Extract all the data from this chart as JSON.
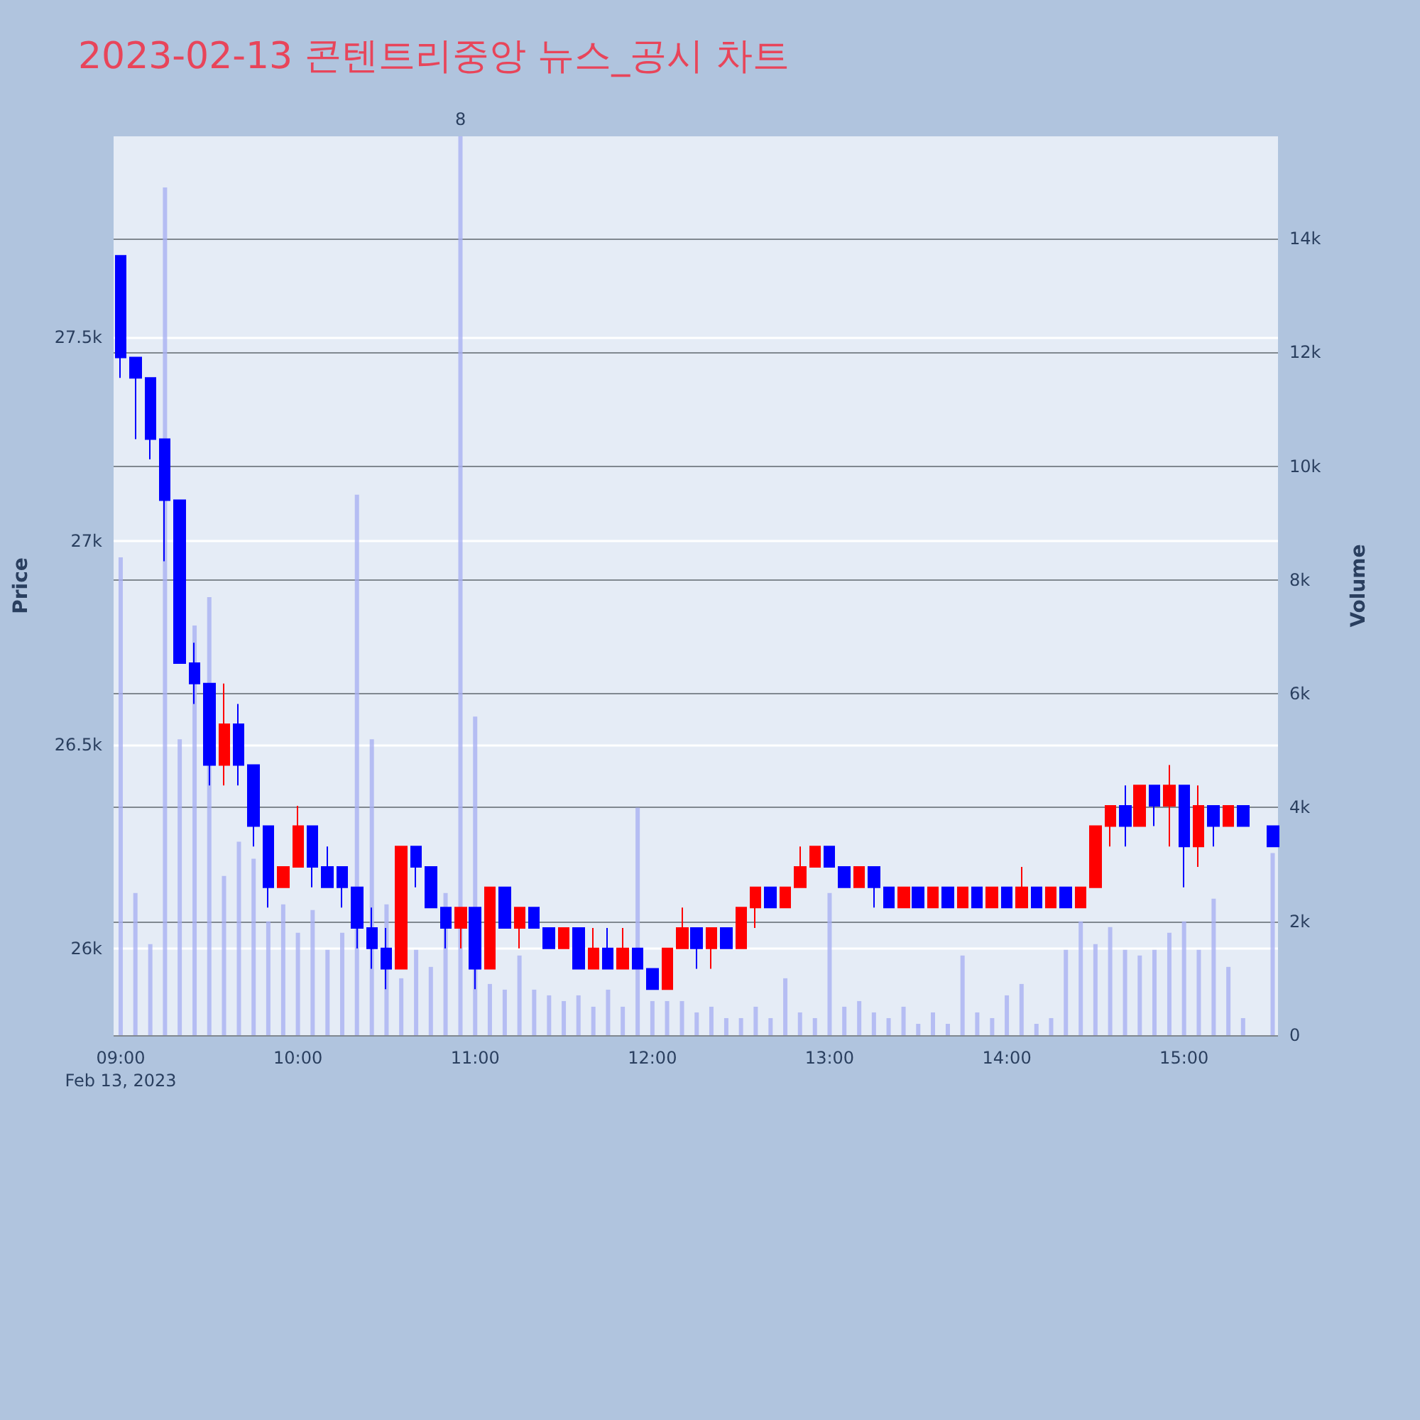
{
  "chart_data": {
    "type": "candlestick",
    "title": "2023-02-13 콘텐트리중앙 뉴스_공시 차트",
    "ylabel": "Price",
    "y2label": "Volume",
    "x": [
      9,
      9.083,
      9.167,
      9.25,
      9.333,
      9.417,
      9.5,
      9.583,
      9.667,
      9.75,
      9.833,
      9.917,
      10,
      10.083,
      10.167,
      10.25,
      10.333,
      10.417,
      10.5,
      10.583,
      10.667,
      10.75,
      10.833,
      10.917,
      11,
      11.083,
      11.167,
      11.25,
      11.333,
      11.417,
      11.5,
      11.583,
      11.667,
      11.75,
      11.833,
      11.917,
      12,
      12.083,
      12.167,
      12.25,
      12.333,
      12.417,
      12.5,
      12.583,
      12.667,
      12.75,
      12.833,
      12.917,
      13,
      13.083,
      13.167,
      13.25,
      13.333,
      13.417,
      13.5,
      13.583,
      13.667,
      13.75,
      13.833,
      13.917,
      14,
      14.083,
      14.167,
      14.25,
      14.333,
      14.417,
      14.5,
      14.583,
      14.667,
      14.75,
      14.833,
      14.917,
      15,
      15.083,
      15.167,
      15.25,
      15.333,
      15.5
    ],
    "series": [
      {
        "ohlc": [
          [
            27700,
            27700,
            27400,
            27450
          ],
          [
            27450,
            27450,
            27250,
            27400
          ],
          [
            27400,
            27400,
            27200,
            27250
          ],
          [
            27250,
            27250,
            26950,
            27100
          ],
          [
            27100,
            27100,
            26700,
            26700
          ],
          [
            26700,
            26750,
            26600,
            26650
          ],
          [
            26650,
            26650,
            26400,
            26450
          ],
          [
            26450,
            26650,
            26400,
            26550
          ],
          [
            26550,
            26600,
            26400,
            26450
          ],
          [
            26450,
            26450,
            26250,
            26300
          ],
          [
            26300,
            26300,
            26100,
            26150
          ],
          [
            26150,
            26200,
            26150,
            26200
          ],
          [
            26200,
            26350,
            26200,
            26300
          ],
          [
            26300,
            26300,
            26150,
            26200
          ],
          [
            26200,
            26250,
            26150,
            26150
          ],
          [
            26200,
            26200,
            26100,
            26150
          ],
          [
            26150,
            26150,
            26000,
            26050
          ],
          [
            26050,
            26100,
            25950,
            26000
          ],
          [
            26000,
            26050,
            25900,
            25950
          ],
          [
            25950,
            26250,
            25950,
            26250
          ],
          [
            26250,
            26250,
            26150,
            26200
          ],
          [
            26200,
            26200,
            26100,
            26100
          ],
          [
            26100,
            26100,
            26000,
            26050
          ],
          [
            26050,
            26100,
            26000,
            26100
          ],
          [
            26100,
            26100,
            25900,
            25950
          ],
          [
            25950,
            26150,
            25950,
            26150
          ],
          [
            26150,
            26150,
            26050,
            26050
          ],
          [
            26050,
            26100,
            26000,
            26100
          ],
          [
            26100,
            26100,
            26050,
            26050
          ],
          [
            26050,
            26050,
            26000,
            26000
          ],
          [
            26000,
            26050,
            26000,
            26050
          ],
          [
            26050,
            26050,
            25950,
            25950
          ],
          [
            25950,
            26050,
            25950,
            26000
          ],
          [
            26000,
            26050,
            25950,
            25950
          ],
          [
            25950,
            26050,
            25950,
            26000
          ],
          [
            26000,
            26000,
            25950,
            25950
          ],
          [
            25950,
            25950,
            25900,
            25900
          ],
          [
            25900,
            26000,
            25900,
            26000
          ],
          [
            26000,
            26100,
            26000,
            26050
          ],
          [
            26050,
            26050,
            25950,
            26000
          ],
          [
            26000,
            26050,
            25950,
            26050
          ],
          [
            26050,
            26050,
            26000,
            26000
          ],
          [
            26000,
            26100,
            26000,
            26100
          ],
          [
            26100,
            26150,
            26050,
            26150
          ],
          [
            26150,
            26150,
            26100,
            26100
          ],
          [
            26100,
            26150,
            26100,
            26150
          ],
          [
            26150,
            26250,
            26150,
            26200
          ],
          [
            26200,
            26250,
            26200,
            26250
          ],
          [
            26250,
            26250,
            26200,
            26200
          ],
          [
            26200,
            26200,
            26150,
            26150
          ],
          [
            26150,
            26200,
            26150,
            26200
          ],
          [
            26200,
            26200,
            26100,
            26150
          ],
          [
            26150,
            26150,
            26100,
            26100
          ],
          [
            26100,
            26150,
            26100,
            26150
          ],
          [
            26150,
            26150,
            26100,
            26100
          ],
          [
            26100,
            26150,
            26100,
            26150
          ],
          [
            26150,
            26150,
            26100,
            26100
          ],
          [
            26100,
            26150,
            26100,
            26150
          ],
          [
            26150,
            26150,
            26100,
            26100
          ],
          [
            26100,
            26150,
            26100,
            26150
          ],
          [
            26150,
            26150,
            26100,
            26100
          ],
          [
            26100,
            26200,
            26100,
            26150
          ],
          [
            26150,
            26150,
            26100,
            26100
          ],
          [
            26100,
            26150,
            26100,
            26150
          ],
          [
            26150,
            26150,
            26100,
            26100
          ],
          [
            26100,
            26150,
            26100,
            26150
          ],
          [
            26150,
            26300,
            26150,
            26300
          ],
          [
            26300,
            26350,
            26250,
            26350
          ],
          [
            26350,
            26400,
            26250,
            26300
          ],
          [
            26300,
            26400,
            26300,
            26400
          ],
          [
            26400,
            26400,
            26300,
            26350
          ],
          [
            26350,
            26450,
            26250,
            26400
          ],
          [
            26400,
            26400,
            26150,
            26250
          ],
          [
            26250,
            26400,
            26200,
            26350
          ],
          [
            26350,
            26350,
            26250,
            26300
          ],
          [
            26300,
            26350,
            26300,
            26350
          ],
          [
            26350,
            26350,
            26300,
            26300
          ],
          [
            26300,
            26300,
            26250,
            26250
          ]
        ],
        "colors": [
          "#0000ff",
          "#0000ff",
          "#0000ff",
          "#0000ff",
          "#0000ff",
          "#0000ff",
          "#0000ff",
          "#ff0000",
          "#0000ff",
          "#0000ff",
          "#0000ff",
          "#ff0000",
          "#ff0000",
          "#0000ff",
          "#0000ff",
          "#0000ff",
          "#0000ff",
          "#0000ff",
          "#0000ff",
          "#ff0000",
          "#0000ff",
          "#0000ff",
          "#0000ff",
          "#ff0000",
          "#0000ff",
          "#ff0000",
          "#0000ff",
          "#ff0000",
          "#0000ff",
          "#0000ff",
          "#ff0000",
          "#0000ff",
          "#ff0000",
          "#0000ff",
          "#ff0000",
          "#0000ff",
          "#0000ff",
          "#ff0000",
          "#ff0000",
          "#0000ff",
          "#ff0000",
          "#0000ff",
          "#ff0000",
          "#ff0000",
          "#0000ff",
          "#ff0000",
          "#ff0000",
          "#ff0000",
          "#0000ff",
          "#0000ff",
          "#ff0000",
          "#0000ff",
          "#0000ff",
          "#ff0000",
          "#0000ff",
          "#ff0000",
          "#0000ff",
          "#ff0000",
          "#0000ff",
          "#ff0000",
          "#0000ff",
          "#ff0000",
          "#0000ff",
          "#ff0000",
          "#0000ff",
          "#ff0000",
          "#ff0000",
          "#ff0000",
          "#0000ff",
          "#ff0000",
          "#0000ff",
          "#ff0000",
          "#0000ff",
          "#ff0000",
          "#0000ff",
          "#ff0000",
          "#0000ff",
          "#0000ff"
        ]
      },
      {
        "type": "bar",
        "axis": "y2",
        "color": "#a9b2f2",
        "values": [
          8400,
          2500,
          1600,
          14900,
          5200,
          7200,
          7700,
          2800,
          3400,
          3100,
          2000,
          2300,
          1800,
          2200,
          1500,
          1800,
          9500,
          5200,
          2300,
          1000,
          1500,
          1200,
          2500,
          15800,
          5600,
          900,
          800,
          1400,
          800,
          700,
          600,
          700,
          500,
          800,
          500,
          4000,
          600,
          600,
          600,
          400,
          500,
          300,
          300,
          500,
          300,
          1000,
          400,
          300,
          2500,
          500,
          600,
          400,
          300,
          500,
          200,
          400,
          200,
          1400,
          400,
          300,
          700,
          900,
          200,
          300,
          1500,
          2000,
          1600,
          1900,
          1500,
          1400,
          1500,
          1800,
          2000,
          1500,
          2400,
          1200,
          300,
          3200
        ]
      }
    ],
    "xlim": [
      8.96,
      15.53
    ],
    "xticks": [
      {
        "value": 9,
        "label": "09:00\nFeb 13, 2023"
      },
      {
        "value": 10,
        "label": "10:00"
      },
      {
        "value": 11,
        "label": "11:00"
      },
      {
        "value": 12,
        "label": "12:00"
      },
      {
        "value": 13,
        "label": "13:00"
      },
      {
        "value": 14,
        "label": "14:00"
      },
      {
        "value": 15,
        "label": "15:00"
      }
    ],
    "ylim": [
      25787,
      27993
    ],
    "yticks": [
      {
        "value": 26000,
        "label": "26k"
      },
      {
        "value": 26500,
        "label": "26.5k"
      },
      {
        "value": 27000,
        "label": "27k"
      },
      {
        "value": 27500,
        "label": "27.5k"
      }
    ],
    "y2lim": [
      0,
      15800
    ],
    "y2ticks": [
      0,
      {
        "value": 2000,
        "label": "2k"
      },
      {
        "value": 4000,
        "label": "4k"
      },
      {
        "value": 6000,
        "label": "6k"
      },
      {
        "value": 8000,
        "label": "8k"
      },
      {
        "value": 10000,
        "label": "10k"
      },
      {
        "value": 12000,
        "label": "12k"
      },
      {
        "value": 14000,
        "label": "14k"
      }
    ],
    "grid": true,
    "annotations": [
      "8"
    ]
  }
}
